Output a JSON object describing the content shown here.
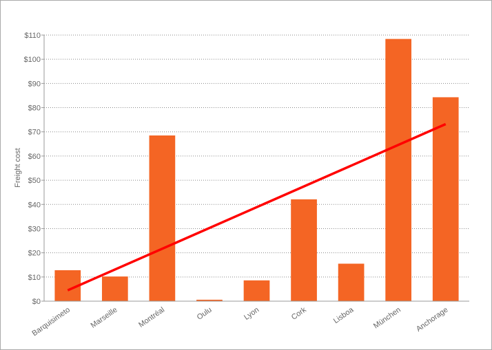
{
  "chart_data": {
    "type": "bar",
    "title": "",
    "xlabel": "",
    "ylabel": "Freight cost",
    "ylim": [
      0,
      110
    ],
    "yticks": [
      0,
      10,
      20,
      30,
      40,
      50,
      60,
      70,
      80,
      90,
      100,
      110
    ],
    "ytick_labels": [
      "$0",
      "$10",
      "$20",
      "$30",
      "$40",
      "$50",
      "$60",
      "$70",
      "$80",
      "$90",
      "$100",
      "$110"
    ],
    "categories": [
      "Barquisimeto",
      "Marseille",
      "Montréal",
      "Oulu",
      "Lyon",
      "Cork",
      "Lisboa",
      "München",
      "Anchorage"
    ],
    "values": [
      12.8,
      10.2,
      68.5,
      0.6,
      8.6,
      42.1,
      15.5,
      108.4,
      84.3
    ],
    "trendline": {
      "start": 4.5,
      "end": 73.2
    },
    "grid": true,
    "legend": "none",
    "colors": {
      "bar": "#f46524",
      "trend": "#ff0000",
      "grid": "#888888",
      "axis": "#999999"
    }
  }
}
